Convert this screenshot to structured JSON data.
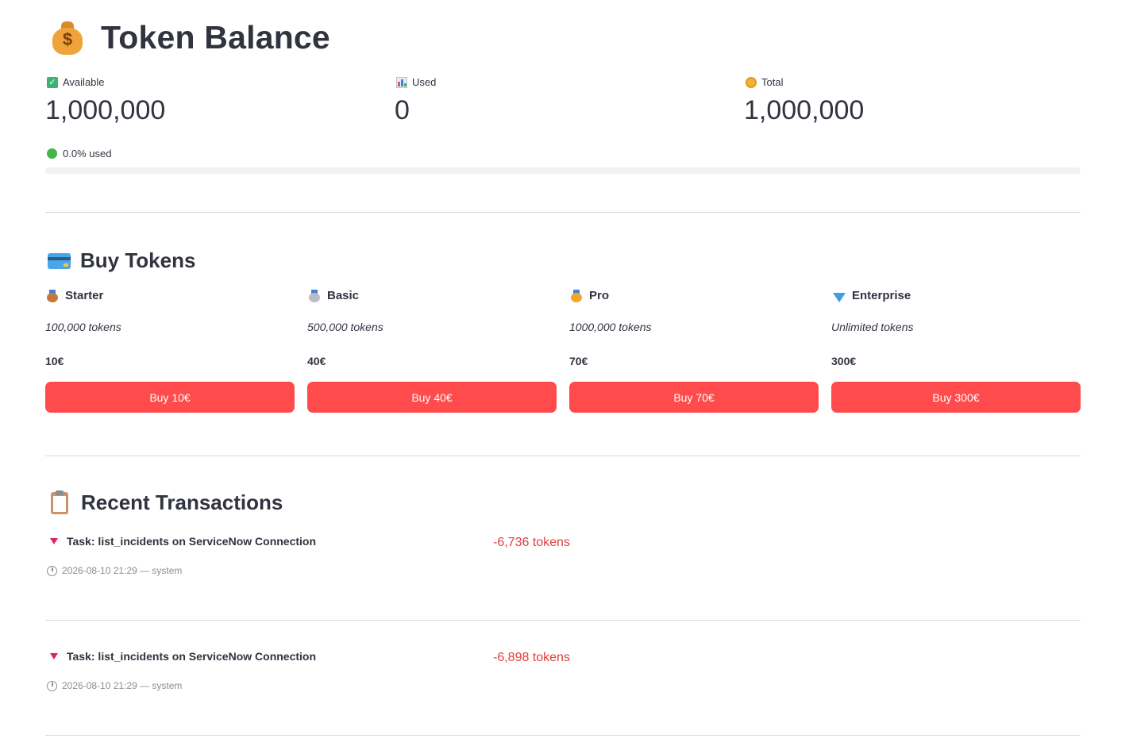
{
  "header": {
    "title": "Token Balance",
    "icon": "money-bag-icon"
  },
  "metrics": [
    {
      "id": "available",
      "label": "Available",
      "value": "1,000,000",
      "icon": "check-icon"
    },
    {
      "id": "used",
      "label": "Used",
      "value": "0",
      "icon": "bar-chart-icon"
    },
    {
      "id": "total",
      "label": "Total",
      "value": "1,000,000",
      "icon": "coin-icon"
    }
  ],
  "usage": {
    "text": "0.0% used",
    "fraction": 0.0,
    "status_color": "#43b54a"
  },
  "buy": {
    "heading": "Buy Tokens",
    "plans": [
      {
        "name": "Starter",
        "tokens": "100,000 tokens",
        "price": "10€",
        "button": "Buy 10€",
        "icon": "bronze-medal-icon"
      },
      {
        "name": "Basic",
        "tokens": "500,000 tokens",
        "price": "40€",
        "button": "Buy 40€",
        "icon": "silver-medal-icon"
      },
      {
        "name": "Pro",
        "tokens": "1000,000 tokens",
        "price": "70€",
        "button": "Buy 70€",
        "icon": "gold-medal-icon"
      },
      {
        "name": "Enterprise",
        "tokens": "Unlimited tokens",
        "price": "300€",
        "button": "Buy 300€",
        "icon": "gem-icon"
      }
    ]
  },
  "transactions": {
    "heading": "Recent Transactions",
    "items": [
      {
        "title": "Task: list_incidents on ServiceNow Connection",
        "amount": "-6,736 tokens",
        "meta": "2026-08-10 21:29 — system"
      },
      {
        "title": "Task: list_incidents on ServiceNow Connection",
        "amount": "-6,898 tokens",
        "meta": "2026-08-10 21:29 — system"
      }
    ]
  },
  "colors": {
    "accent": "#ff4b4b",
    "negative": "#e03e3e",
    "text": "#31333f",
    "muted": "#8a8d96"
  }
}
